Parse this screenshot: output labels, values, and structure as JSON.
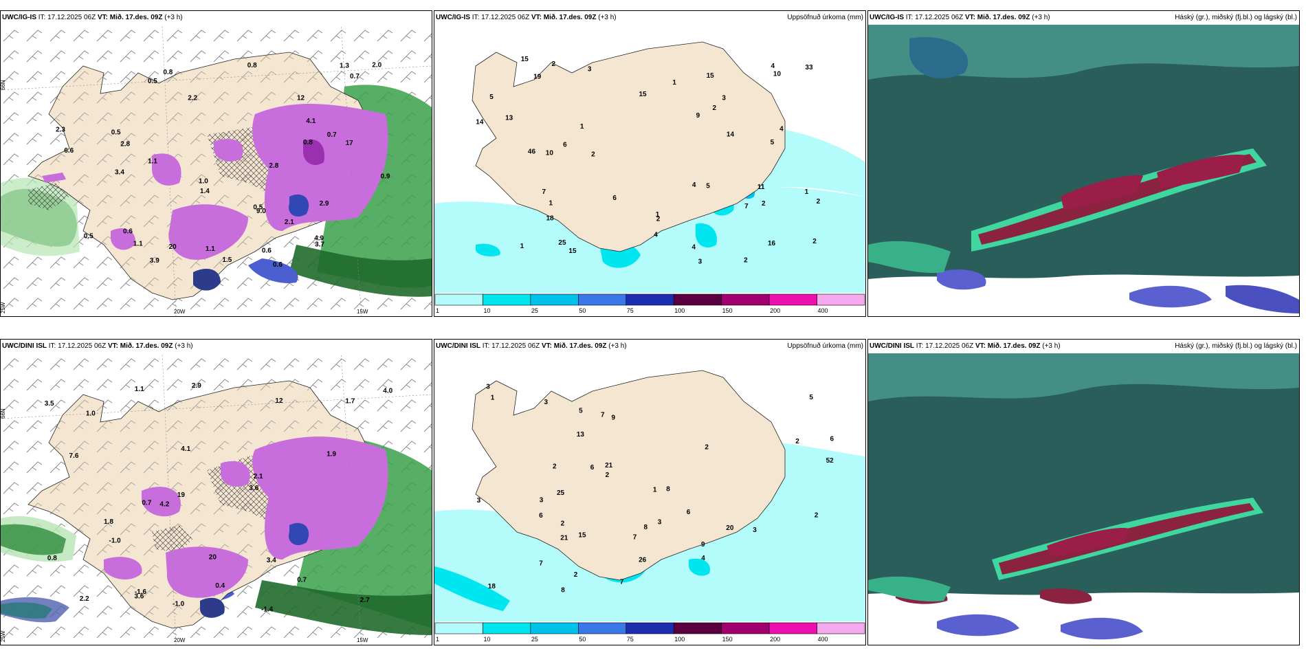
{
  "panels": [
    {
      "title": "UWC/IG-IS",
      "it_label": "IT:",
      "it": "17.12.2025 06Z",
      "vt_label": "VT:",
      "vt": "Mið. 17.des. 09Z",
      "lead": "(+3 h)",
      "right": ""
    },
    {
      "title": "UWC/IG-IS",
      "it_label": "IT:",
      "it": "17.12.2025 06Z",
      "vt_label": "VT:",
      "vt": "Mið. 17.des. 09Z",
      "lead": "(+3 h)",
      "right": "Uppsöfnuð úrkoma (mm)"
    },
    {
      "title": "UWC/IG-IS",
      "it_label": "IT:",
      "it": "17.12.2025 06Z",
      "vt_label": "VT:",
      "vt": "Mið. 17.des. 09Z",
      "lead": "(+3 h)",
      "right": "Háský (gr.), miðský (fj.bl.) og lágský (bl.)"
    },
    {
      "title": "UWC/DINI ISL",
      "it_label": "IT:",
      "it": "17.12.2025 06Z",
      "vt_label": "VT:",
      "vt": "Mið. 17.des. 09Z",
      "lead": "(+3 h)",
      "right": ""
    },
    {
      "title": "UWC/DINI ISL",
      "it_label": "IT:",
      "it": "17.12.2025 06Z",
      "vt_label": "VT:",
      "vt": "Mið. 17.des. 09Z",
      "lead": "(+3 h)",
      "right": "Uppsöfnuð úrkoma (mm)"
    },
    {
      "title": "UWC/DINI ISL",
      "it_label": "IT:",
      "it": "17.12.2025 06Z",
      "vt_label": "VT:",
      "vt": "Mið. 17.des. 09Z",
      "lead": "(+3 h)",
      "right": "Háský (gr.), miðský (fj.bl.) og lágský (bl.)"
    }
  ],
  "axis_labels": {
    "lat66": "66N",
    "lon25": "25W",
    "lon20": "20W",
    "lon15": "15W"
  },
  "colorbar": {
    "ticks": [
      "1",
      "10",
      "25",
      "50",
      "75",
      "100",
      "150",
      "200",
      "400"
    ],
    "colors": [
      "#b4fbfb",
      "#00e6f0",
      "#00c3ec",
      "#3a78e8",
      "#1c2eb0",
      "#5a0040",
      "#a0006e",
      "#ee10ae",
      "#f5aaf0"
    ]
  },
  "precip_labels": {
    "top": [
      "1",
      "2",
      "2",
      "1",
      "1",
      "1",
      "3",
      "3",
      "3",
      "5",
      "5",
      "10",
      "14",
      "14",
      "15",
      "19",
      "18",
      "25",
      "15",
      "15",
      "13",
      "11",
      "16",
      "46",
      "33",
      "9",
      "7",
      "6",
      "7",
      "6",
      "4",
      "4",
      "2",
      "4",
      "2",
      "10",
      "5",
      "4",
      "2",
      "15",
      "2",
      "2",
      "1",
      "2",
      "1",
      "4"
    ],
    "bottom": [
      "1",
      "3",
      "3",
      "5",
      "6",
      "9",
      "9",
      "15",
      "18",
      "20",
      "21",
      "8",
      "8",
      "6",
      "8",
      "6",
      "7",
      "7",
      "13",
      "21",
      "52",
      "26",
      "2",
      "25",
      "3",
      "3",
      "2",
      "3",
      "7",
      "7",
      "6",
      "5",
      "2",
      "2",
      "1",
      "2",
      "3",
      "2",
      "4",
      "2"
    ]
  },
  "top_left_labels": [
    "0.6",
    "0.5",
    "0.6",
    "0.5",
    "0.7",
    "0.6",
    "0.9",
    "1.1",
    "1.4",
    "1.1",
    "0.5",
    "2.3",
    "1.0",
    "0.5",
    "0.8",
    "1.3",
    "6.6",
    "0.7",
    "2.9",
    "17",
    "4.9",
    "9.0",
    "3.9",
    "3.7",
    "2.8",
    "4.1",
    "3.4",
    "2.8",
    "1.5",
    "2.2",
    "2.1",
    "2.0",
    "12",
    "20",
    "0.8",
    "1.1",
    "0.8"
  ],
  "bottom_left_labels": [
    "-1.0",
    "-1.4",
    "-1.6",
    "0.7",
    "1.1",
    "1.0",
    "0.7",
    "2.7",
    "2.9",
    "4.1",
    "1.7",
    "0.4",
    "19",
    "20",
    "12",
    "3.6",
    "7.6",
    "3.6",
    "4.2",
    "3.5",
    "3.4",
    "4.0",
    "2.1",
    "2.2",
    "1.9",
    "1.8",
    "0.8",
    "-1.0"
  ]
}
